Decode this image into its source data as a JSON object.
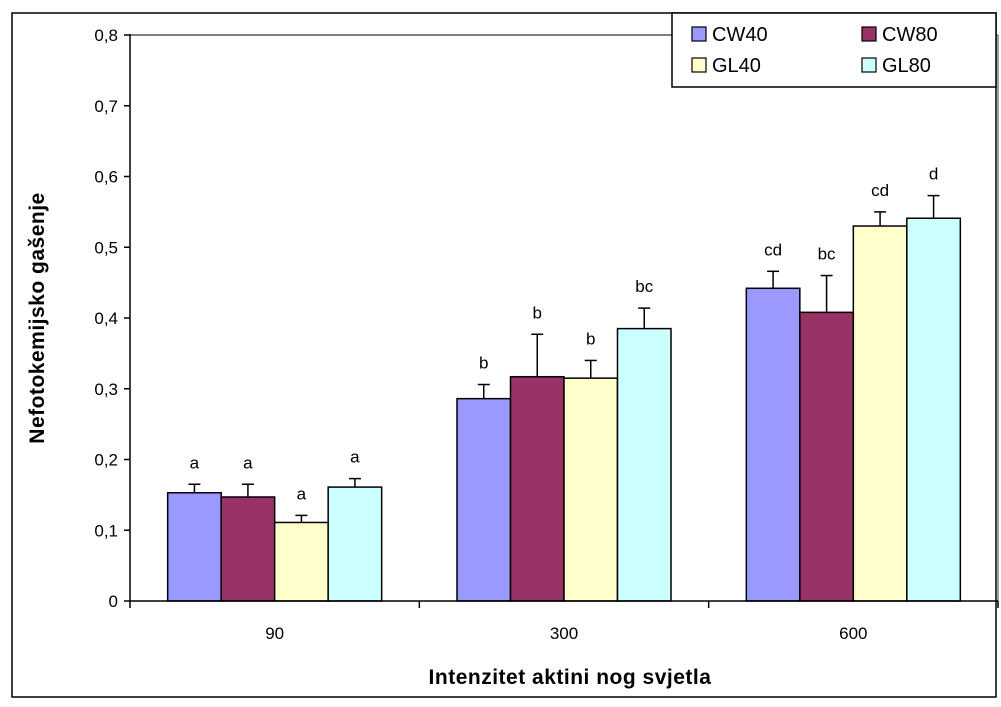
{
  "chart_data": {
    "type": "bar",
    "title": "",
    "xlabel": "Intenzitet aktini  nog svjetla",
    "ylabel": "Nefotokemijsko gašenje",
    "categories": [
      "90",
      "300",
      "600"
    ],
    "ylim": [
      0,
      0.8
    ],
    "yticks": [
      "0",
      "0,1",
      "0,2",
      "0,3",
      "0,4",
      "0,5",
      "0,6",
      "0,7",
      "0,8"
    ],
    "grid": "top border line only",
    "legend_position": "top-right",
    "series": [
      {
        "name": "CW40",
        "color": "#9999ff",
        "values": [
          0.153,
          0.286,
          0.442
        ],
        "errors": [
          0.012,
          0.02,
          0.024
        ],
        "labels": [
          "a",
          "b",
          "cd"
        ]
      },
      {
        "name": "CW80",
        "color": "#993366",
        "values": [
          0.147,
          0.317,
          0.408
        ],
        "errors": [
          0.018,
          0.06,
          0.052
        ],
        "labels": [
          "a",
          "b",
          "bc"
        ]
      },
      {
        "name": "GL40",
        "color": "#ffffcc",
        "values": [
          0.111,
          0.315,
          0.53
        ],
        "errors": [
          0.01,
          0.025,
          0.02
        ],
        "labels": [
          "a",
          "b",
          "cd"
        ]
      },
      {
        "name": "GL80",
        "color": "#ccffff",
        "values": [
          0.161,
          0.385,
          0.541
        ],
        "errors": [
          0.012,
          0.029,
          0.032
        ],
        "labels": [
          "a",
          "bc",
          "d"
        ]
      }
    ]
  }
}
